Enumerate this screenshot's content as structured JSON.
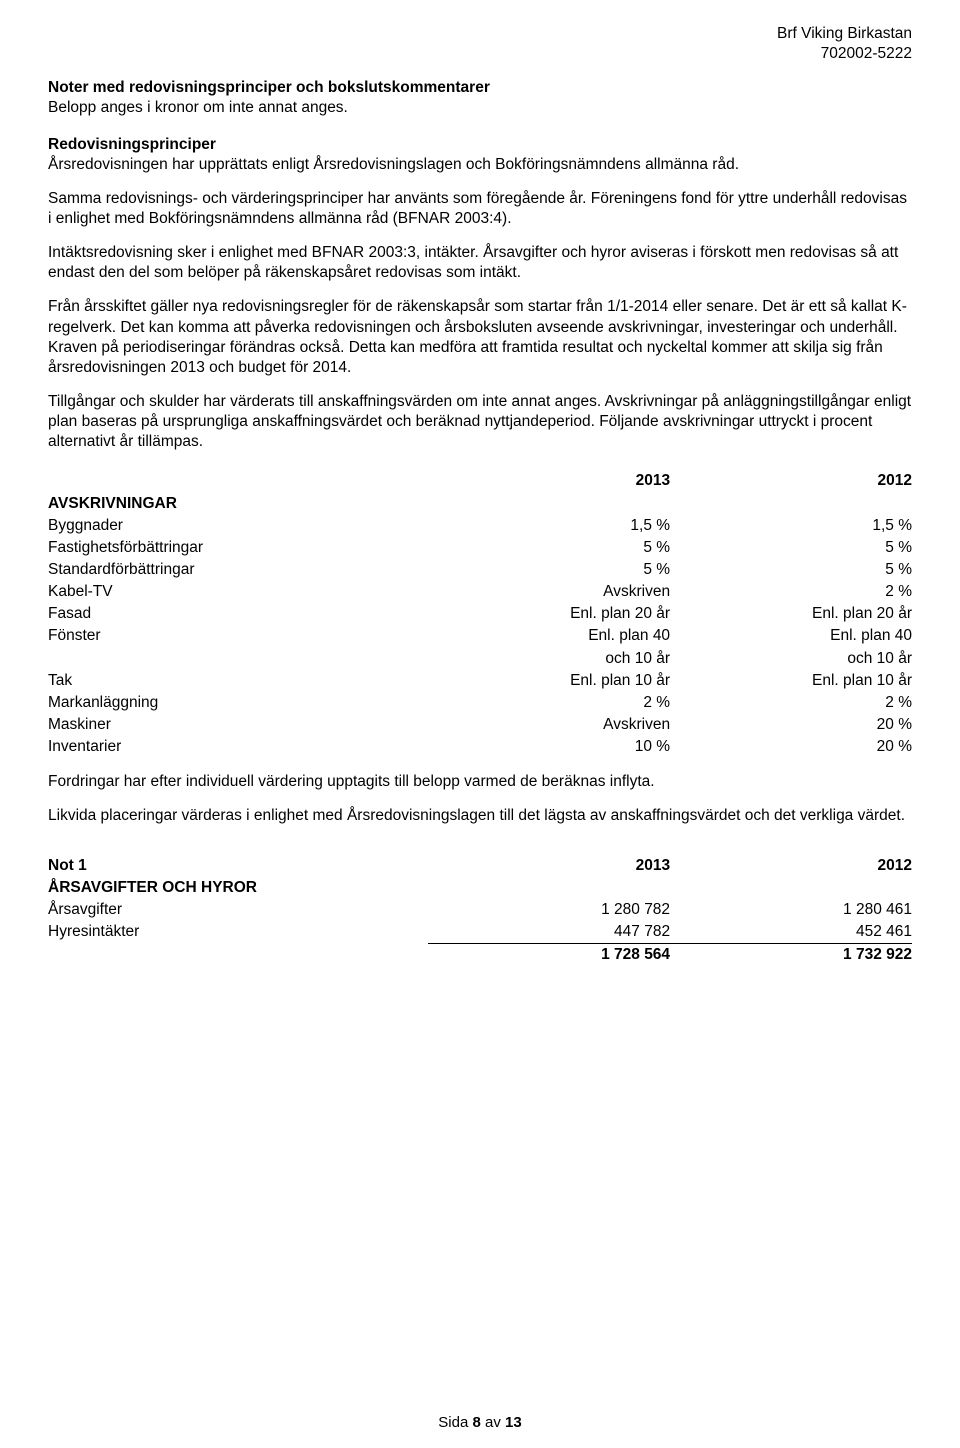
{
  "header": {
    "org_name": "Brf Viking Birkastan",
    "org_number": "702002-5222"
  },
  "section": {
    "title": "Noter med redovisningsprinciper och bokslutskommentarer",
    "subtitle": "Belopp anges i kronor om inte annat anges."
  },
  "principles": {
    "heading": "Redovisningsprinciper",
    "p1": "Årsredovisningen har upprättats enligt Årsredovisningslagen och Bokföringsnämndens allmänna råd.",
    "p2": "Samma redovisnings- och värderingsprinciper har använts som föregående år. Föreningens fond för yttre underhåll redovisas i enlighet med Bokföringsnämndens allmänna råd (BFNAR 2003:4).",
    "p3": "Intäktsredovisning sker i enlighet med BFNAR 2003:3, intäkter. Årsavgifter och hyror aviseras i förskott men redovisas så att endast den del som belöper på räkenskapsåret redovisas som intäkt.",
    "p4": "Från årsskiftet gäller nya redovisningsregler för de räkenskapsår som startar från 1/1-2014 eller senare. Det är ett så kallat K-regelverk. Det kan komma att påverka redovisningen och årsboksluten avseende avskrivningar, investeringar och underhåll.  Kraven på periodiseringar förändras också. Detta kan medföra att framtida resultat och nyckeltal kommer att skilja sig från årsredovisningen 2013 och budget för 2014.",
    "p5": "Tillgångar och skulder har värderats till anskaffningsvärden om inte annat anges. Avskrivningar på anläggningstillgångar enligt plan baseras på ursprungliga anskaffningsvärdet och beräknad nyttjandeperiod. Följande avskrivningar uttryckt i procent alternativt år tillämpas."
  },
  "avskrivningar": {
    "heading": "AVSKRIVNINGAR",
    "year_a": "2013",
    "year_b": "2012",
    "rows": {
      "byggnader": {
        "label": "Byggnader",
        "a": "1,5 %",
        "b": "1,5 %"
      },
      "fastighet": {
        "label": "Fastighetsförbättringar",
        "a": "5 %",
        "b": "5 %"
      },
      "standard": {
        "label": "Standardförbättringar",
        "a": "5 %",
        "b": "5 %"
      },
      "kabel": {
        "label": "Kabel-TV",
        "a": "Avskriven",
        "b": "2 %"
      },
      "fasad": {
        "label": "Fasad",
        "a": "Enl. plan 20 år",
        "b": "Enl. plan 20 år"
      },
      "fonster": {
        "label": "Fönster",
        "a": "Enl. plan 40",
        "b": "Enl. plan 40"
      },
      "fonster2": {
        "label": "",
        "a": "och 10 år",
        "b": "och 10 år"
      },
      "tak": {
        "label": "Tak",
        "a": "Enl. plan 10 år",
        "b": "Enl. plan 10 år"
      },
      "mark": {
        "label": "Markanläggning",
        "a": "2 %",
        "b": "2 %"
      },
      "maskiner": {
        "label": "Maskiner",
        "a": "Avskriven",
        "b": "20 %"
      },
      "inventarier": {
        "label": "Inventarier",
        "a": "10 %",
        "b": "20 %"
      }
    }
  },
  "after_table": {
    "p1": "Fordringar har efter individuell värdering upptagits till belopp varmed de beräknas inflyta.",
    "p2": "Likvida placeringar värderas i enlighet med Årsredovisningslagen till det lägsta av anskaffningsvärdet och det verkliga värdet."
  },
  "not1": {
    "title": "Not 1",
    "subtitle": "ÅRSAVGIFTER OCH HYROR",
    "year_a": "2013",
    "year_b": "2012",
    "row1": {
      "label": "Årsavgifter",
      "a": "1 280 782",
      "b": "1 280 461"
    },
    "row2": {
      "label": "Hyresintäkter",
      "a": "447 782",
      "b": "452 461"
    },
    "sum": {
      "a": "1 728 564",
      "b": "1 732 922"
    }
  },
  "footer": {
    "a": "Sida ",
    "page": "8",
    "b": " av ",
    "total": "13"
  }
}
